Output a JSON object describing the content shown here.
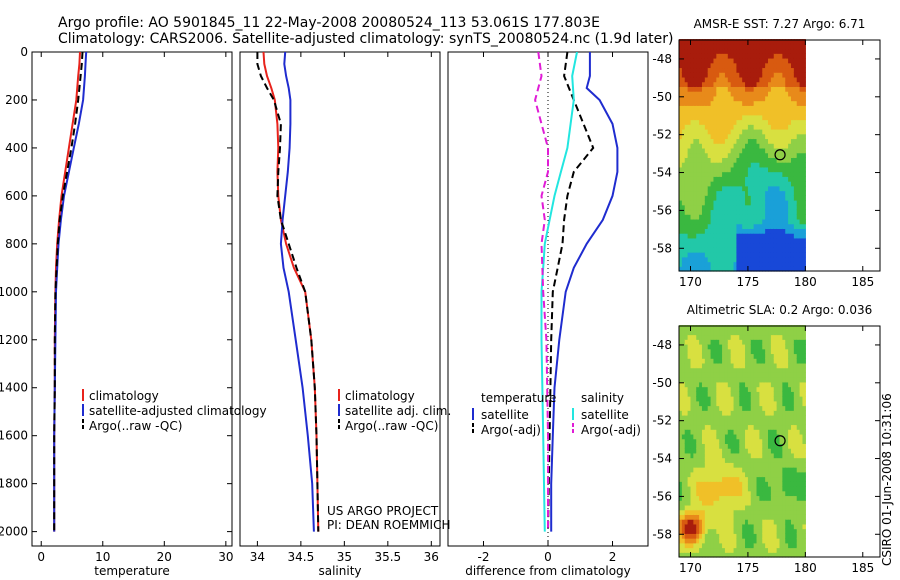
{
  "header": {
    "line1": "Argo profile: AO 5901845_11 22-May-2008 20080524_113 53.061S 177.803E",
    "line2": "Climatology: CARS2006. Satellite-adjusted climatology: synTS_20080524.nc (1.9d later)"
  },
  "side_stamp": "CSIRO 01-Jun-2008 10:31:06",
  "colors": {
    "red": "#e8231c",
    "blue": "#1f2ccf",
    "black": "#000000",
    "cyan": "#22e6e0",
    "magenta": "#e01cd6"
  },
  "chart_data": [
    {
      "id": "temperature",
      "type": "line",
      "xlabel": "temperature",
      "xlim": [
        -1.5,
        31
      ],
      "ylim": [
        0,
        2060
      ],
      "y_reversed": true,
      "xticks": [
        0,
        10,
        20,
        30
      ],
      "xtick_labels": [
        "0",
        "10",
        "20",
        "30"
      ],
      "yticks": [
        0,
        200,
        400,
        600,
        800,
        1000,
        1200,
        1400,
        1600,
        1800,
        2000
      ],
      "ytick_labels": [
        "0",
        "200",
        "400",
        "600",
        "800",
        "1000",
        "1200",
        "1400",
        "1600",
        "1800",
        "2000"
      ],
      "legend": {
        "position": "bottom-right",
        "entries": [
          "climatology",
          "satellite-adjusted climatology",
          "Argo(..raw -QC)"
        ]
      },
      "series": [
        {
          "name": "climatology",
          "color": "red",
          "dash": "solid",
          "x": [
            6.3,
            6.2,
            6.0,
            5.7,
            5.1,
            4.5,
            3.9,
            3.3,
            2.9,
            2.6,
            2.4,
            2.3,
            2.2,
            2.2,
            2.1,
            2.1
          ],
          "y": [
            0,
            50,
            100,
            200,
            300,
            400,
            500,
            600,
            700,
            800,
            900,
            1000,
            1200,
            1400,
            1600,
            2000
          ]
        },
        {
          "name": "satellite-adjusted climatology",
          "color": "blue",
          "dash": "solid",
          "x": [
            7.3,
            7.2,
            7.1,
            6.8,
            6.1,
            5.3,
            4.5,
            3.7,
            3.2,
            2.8,
            2.6,
            2.4,
            2.3,
            2.2,
            2.1,
            2.1
          ],
          "y": [
            0,
            50,
            100,
            200,
            300,
            400,
            500,
            600,
            700,
            800,
            900,
            1000,
            1200,
            1400,
            1600,
            2000
          ]
        },
        {
          "name": "Argo(..raw -QC)",
          "color": "black",
          "dash": "dashed",
          "x": [
            6.7,
            6.6,
            6.4,
            6.0,
            5.5,
            4.9,
            4.2,
            3.5,
            3.0,
            2.7,
            2.5,
            2.3,
            2.2,
            2.2,
            2.1,
            2.1
          ],
          "y": [
            0,
            50,
            100,
            200,
            300,
            400,
            500,
            600,
            700,
            800,
            900,
            1000,
            1200,
            1400,
            1600,
            2000
          ]
        }
      ]
    },
    {
      "id": "salinity",
      "type": "line",
      "xlabel": "salinity",
      "xlim": [
        33.8,
        36.1
      ],
      "ylim": [
        0,
        2060
      ],
      "y_reversed": true,
      "xticks": [
        34,
        34.5,
        35,
        35.5,
        36
      ],
      "xtick_labels": [
        "34",
        "34.5",
        "35",
        "35.5",
        "36"
      ],
      "legend": {
        "position": "bottom-right",
        "entries": [
          "climatology",
          "satellite adj. clim.",
          "Argo(..raw -QC)"
        ]
      },
      "annotation": [
        "US ARGO PROJECT",
        "PI: DEAN ROEMMICH"
      ],
      "series": [
        {
          "name": "climatology",
          "color": "red",
          "dash": "solid",
          "x": [
            34.07,
            34.08,
            34.11,
            34.16,
            34.2,
            34.23,
            34.24,
            34.23,
            34.24,
            34.27,
            34.33,
            34.42,
            34.55,
            34.62,
            34.66,
            34.68,
            34.69,
            34.7
          ],
          "y": [
            0,
            50,
            100,
            150,
            200,
            300,
            400,
            500,
            600,
            700,
            800,
            900,
            1000,
            1200,
            1400,
            1600,
            1800,
            2000
          ]
        },
        {
          "name": "satellite adj. clim.",
          "color": "blue",
          "dash": "solid",
          "x": [
            34.32,
            34.31,
            34.33,
            34.36,
            34.38,
            34.38,
            34.37,
            34.35,
            34.32,
            34.29,
            34.27,
            34.3,
            34.36,
            34.44,
            34.52,
            34.58,
            34.63,
            34.65
          ],
          "y": [
            0,
            50,
            100,
            150,
            200,
            300,
            400,
            500,
            600,
            700,
            800,
            900,
            1000,
            1200,
            1400,
            1600,
            1800,
            2000
          ]
        },
        {
          "name": "Argo(..raw -QC)",
          "color": "black",
          "dash": "dashed",
          "x": [
            34.0,
            34.0,
            34.04,
            34.11,
            34.19,
            34.27,
            34.26,
            34.24,
            34.23,
            34.27,
            34.36,
            34.45,
            34.55,
            34.62,
            34.66,
            34.68,
            34.69,
            34.7
          ],
          "y": [
            0,
            50,
            100,
            150,
            200,
            300,
            400,
            500,
            600,
            700,
            800,
            900,
            1000,
            1200,
            1400,
            1600,
            1800,
            2000
          ]
        }
      ]
    },
    {
      "id": "difference",
      "type": "line",
      "xlabel": "difference from climatology",
      "xlim": [
        -3.1,
        3.1
      ],
      "ylim": [
        0,
        2060
      ],
      "y_reversed": true,
      "xticks": [
        -2,
        0,
        2
      ],
      "xtick_labels": [
        "-2",
        "0",
        "2"
      ],
      "zero_line": true,
      "legend": {
        "position": "bottom-center",
        "group_titles": [
          "temperature",
          "salinity"
        ],
        "entries": [
          "satellite",
          "Argo(-adj)",
          "satellite",
          "Argo(-adj)"
        ]
      },
      "series": [
        {
          "name": "satellite",
          "group": "temperature",
          "color": "blue",
          "dash": "solid",
          "x": [
            1.3,
            1.3,
            1.2,
            1.6,
            2.0,
            2.15,
            2.15,
            2.0,
            1.7,
            1.2,
            0.8,
            0.55,
            0.35,
            0.2,
            0.15,
            0.1,
            0.1
          ],
          "y": [
            0,
            100,
            150,
            200,
            300,
            400,
            500,
            600,
            700,
            800,
            900,
            1000,
            1200,
            1400,
            1600,
            1800,
            2000
          ]
        },
        {
          "name": "Argo(-adj)",
          "group": "temperature",
          "color": "black",
          "dash": "dashed",
          "x": [
            0.6,
            0.5,
            0.8,
            1.1,
            1.4,
            0.8,
            0.6,
            0.5,
            0.45,
            0.3,
            0.15,
            0.1,
            0.05,
            0.0
          ],
          "y": [
            0,
            100,
            200,
            300,
            400,
            500,
            600,
            700,
            800,
            900,
            1000,
            1200,
            1600,
            2000
          ]
        },
        {
          "name": "satellite",
          "group": "salinity",
          "color": "cyan",
          "dash": "solid",
          "x": [
            0.9,
            0.75,
            0.8,
            0.7,
            0.6,
            0.4,
            0.2,
            0.05,
            -0.1,
            -0.15,
            -0.2,
            -0.2,
            -0.15,
            -0.1
          ],
          "y": [
            0,
            100,
            200,
            300,
            400,
            500,
            600,
            700,
            800,
            900,
            1000,
            1200,
            1600,
            2000
          ]
        },
        {
          "name": "Argo(-adj)",
          "group": "salinity",
          "color": "magenta",
          "dash": "dashed",
          "x": [
            -0.3,
            -0.2,
            -0.4,
            -0.2,
            0.0,
            0.0,
            -0.2,
            -0.1,
            -0.2,
            -0.15,
            -0.05,
            0.0,
            0.0
          ],
          "y": [
            0,
            100,
            200,
            300,
            400,
            500,
            600,
            700,
            800,
            1000,
            1200,
            1600,
            2000
          ]
        }
      ]
    },
    {
      "id": "sst_map",
      "type": "heatmap",
      "title": "AMSR-E SST: 7.27 Argo: 6.71",
      "xlim": [
        169,
        186.5
      ],
      "ylim": [
        -59.2,
        -47
      ],
      "xticks": [
        170,
        175,
        180,
        185
      ],
      "xtick_labels": [
        "170",
        "175",
        "180",
        "185"
      ],
      "yticks": [
        -48,
        -50,
        -52,
        -54,
        -56,
        -58
      ],
      "ytick_labels": [
        "-48",
        "-50",
        "-52",
        "-54",
        "-56",
        "-58"
      ],
      "marker": {
        "x": 177.8,
        "y": -53.06
      },
      "colorscale": [
        "#1848d8",
        "#1aa0d8",
        "#22c8a8",
        "#3ab840",
        "#8fd046",
        "#d8e040",
        "#f0c028",
        "#e88a1a",
        "#d85a10",
        "#a81c0c"
      ]
    },
    {
      "id": "sla_map",
      "type": "heatmap",
      "title": "Altimetric SLA: 0.2 Argo: 0.036",
      "xlim": [
        169,
        186.5
      ],
      "ylim": [
        -59.2,
        -47
      ],
      "xticks": [
        170,
        175,
        180,
        185
      ],
      "xtick_labels": [
        "170",
        "175",
        "180",
        "185"
      ],
      "yticks": [
        -48,
        -50,
        -52,
        -54,
        -56,
        -58
      ],
      "ytick_labels": [
        "-48",
        "-50",
        "-52",
        "-54",
        "-56",
        "-58"
      ],
      "marker": {
        "x": 177.8,
        "y": -53.06
      },
      "colorscale": [
        "#1848d8",
        "#1aa0d8",
        "#22c8a8",
        "#3ab840",
        "#8fd046",
        "#d8e040",
        "#f0c028",
        "#e88a1a",
        "#d85a10",
        "#a81c0c"
      ]
    }
  ]
}
